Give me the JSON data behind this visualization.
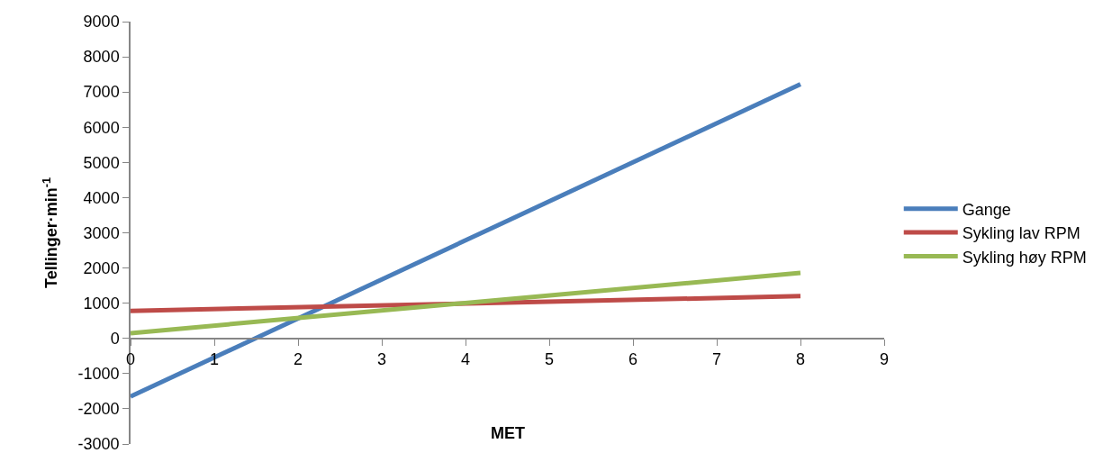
{
  "chart_data": {
    "type": "line",
    "xlabel": "MET",
    "ylabel": "Tellinger·min$^{-1}$",
    "xlim": [
      0,
      9
    ],
    "xticks": [
      0,
      1,
      2,
      3,
      4,
      5,
      6,
      7,
      8,
      9
    ],
    "ylim": [
      -3000,
      9000
    ],
    "yticks": [
      -3000,
      -2000,
      -1000,
      0,
      1000,
      2000,
      3000,
      4000,
      5000,
      6000,
      7000,
      8000,
      9000
    ],
    "grid": false,
    "legend": "right",
    "marker": "none",
    "line_style": "solid",
    "x": [
      0,
      8
    ],
    "series": [
      {
        "name": "Gange",
        "color": "#4a7ebb",
        "values": [
          -1650,
          7220
        ]
      },
      {
        "name": "Sykling lav RPM",
        "color": "#be4b48",
        "values": [
          780,
          1200
        ]
      },
      {
        "name": "Sykling høy RPM",
        "color": "#98b954",
        "values": [
          150,
          1860
        ]
      }
    ]
  }
}
